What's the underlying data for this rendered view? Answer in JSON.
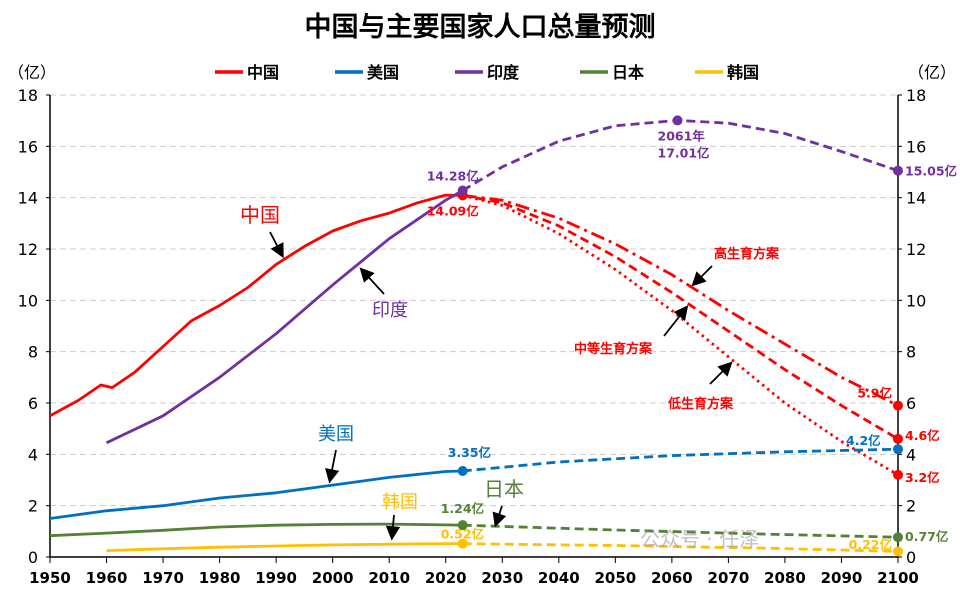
{
  "chart_data": {
    "type": "line",
    "title": "中国与主要国家人口总量预测",
    "ylabel_left": "（亿）",
    "ylabel_right": "（亿）",
    "xlim": [
      1950,
      2100
    ],
    "ylim": [
      0,
      18
    ],
    "x_ticks": [
      1950,
      1960,
      1970,
      1980,
      1990,
      2000,
      2010,
      2020,
      2030,
      2040,
      2050,
      2060,
      2070,
      2080,
      2090,
      2100
    ],
    "y_ticks": [
      0,
      2,
      4,
      6,
      8,
      10,
      12,
      14,
      16,
      18
    ],
    "grid": "horizontal dashed",
    "legend_position": "top",
    "series": [
      {
        "name": "中国",
        "color": "#ff0000",
        "actual": [
          [
            1950,
            5.5
          ],
          [
            1955,
            6.1
          ],
          [
            1959,
            6.7
          ],
          [
            1961,
            6.6
          ],
          [
            1965,
            7.2
          ],
          [
            1970,
            8.2
          ],
          [
            1975,
            9.2
          ],
          [
            1980,
            9.8
          ],
          [
            1985,
            10.5
          ],
          [
            1990,
            11.4
          ],
          [
            1995,
            12.1
          ],
          [
            2000,
            12.7
          ],
          [
            2005,
            13.1
          ],
          [
            2010,
            13.4
          ],
          [
            2015,
            13.8
          ],
          [
            2020,
            14.1
          ],
          [
            2023,
            14.09
          ]
        ],
        "projections": [
          {
            "name": "高生育方案",
            "style": "dashdot",
            "points": [
              [
                2023,
                14.09
              ],
              [
                2030,
                13.9
              ],
              [
                2040,
                13.2
              ],
              [
                2050,
                12.2
              ],
              [
                2060,
                11.0
              ],
              [
                2070,
                9.6
              ],
              [
                2080,
                8.3
              ],
              [
                2090,
                7.0
              ],
              [
                2100,
                5.9
              ]
            ]
          },
          {
            "name": "中等生育方案",
            "style": "dashed",
            "points": [
              [
                2023,
                14.09
              ],
              [
                2030,
                13.8
              ],
              [
                2040,
                12.9
              ],
              [
                2050,
                11.7
              ],
              [
                2060,
                10.3
              ],
              [
                2070,
                8.8
              ],
              [
                2080,
                7.3
              ],
              [
                2090,
                5.9
              ],
              [
                2100,
                4.6
              ]
            ]
          },
          {
            "name": "低生育方案",
            "style": "dotted",
            "points": [
              [
                2023,
                14.09
              ],
              [
                2030,
                13.7
              ],
              [
                2040,
                12.6
              ],
              [
                2050,
                11.2
              ],
              [
                2060,
                9.6
              ],
              [
                2070,
                7.8
              ],
              [
                2080,
                6.0
              ],
              [
                2090,
                4.5
              ],
              [
                2100,
                3.2
              ]
            ]
          }
        ]
      },
      {
        "name": "美国",
        "color": "#0070c0",
        "actual": [
          [
            1950,
            1.5
          ],
          [
            1960,
            1.8
          ],
          [
            1970,
            2.0
          ],
          [
            1980,
            2.3
          ],
          [
            1990,
            2.5
          ],
          [
            2000,
            2.8
          ],
          [
            2010,
            3.1
          ],
          [
            2020,
            3.33
          ],
          [
            2023,
            3.35
          ]
        ],
        "projections": [
          {
            "name": "",
            "style": "dashed",
            "points": [
              [
                2023,
                3.35
              ],
              [
                2040,
                3.7
              ],
              [
                2060,
                3.95
              ],
              [
                2080,
                4.1
              ],
              [
                2100,
                4.2
              ]
            ]
          }
        ]
      },
      {
        "name": "印度",
        "color": "#7030a0",
        "actual": [
          [
            1960,
            4.45
          ],
          [
            1970,
            5.5
          ],
          [
            1980,
            7.0
          ],
          [
            1990,
            8.7
          ],
          [
            2000,
            10.6
          ],
          [
            2010,
            12.4
          ],
          [
            2020,
            13.9
          ],
          [
            2023,
            14.28
          ]
        ],
        "projections": [
          {
            "name": "",
            "style": "dashed",
            "points": [
              [
                2023,
                14.28
              ],
              [
                2030,
                15.2
              ],
              [
                2040,
                16.2
              ],
              [
                2050,
                16.8
              ],
              [
                2061,
                17.01
              ],
              [
                2070,
                16.9
              ],
              [
                2080,
                16.5
              ],
              [
                2090,
                15.8
              ],
              [
                2100,
                15.05
              ]
            ]
          }
        ]
      },
      {
        "name": "日本",
        "color": "#548235",
        "actual": [
          [
            1950,
            0.83
          ],
          [
            1960,
            0.93
          ],
          [
            1970,
            1.04
          ],
          [
            1980,
            1.17
          ],
          [
            1990,
            1.24
          ],
          [
            2000,
            1.27
          ],
          [
            2010,
            1.28
          ],
          [
            2020,
            1.25
          ],
          [
            2023,
            1.24
          ]
        ],
        "projections": [
          {
            "name": "",
            "style": "dashed",
            "points": [
              [
                2023,
                1.24
              ],
              [
                2050,
                1.05
              ],
              [
                2075,
                0.9
              ],
              [
                2100,
                0.77
              ]
            ]
          }
        ]
      },
      {
        "name": "韩国",
        "color": "#ffc000",
        "actual": [
          [
            1960,
            0.25
          ],
          [
            1970,
            0.32
          ],
          [
            1980,
            0.38
          ],
          [
            1990,
            0.43
          ],
          [
            2000,
            0.47
          ],
          [
            2010,
            0.5
          ],
          [
            2020,
            0.52
          ],
          [
            2023,
            0.52
          ]
        ],
        "projections": [
          {
            "name": "",
            "style": "dashed",
            "points": [
              [
                2023,
                0.52
              ],
              [
                2050,
                0.45
              ],
              [
                2075,
                0.35
              ],
              [
                2100,
                0.22
              ]
            ]
          }
        ]
      }
    ],
    "data_labels": [
      {
        "text": "14.28亿",
        "x": 2023,
        "y": 14.28,
        "color": "#7030a0"
      },
      {
        "text": "14.09亿",
        "x": 2023,
        "y": 14.09,
        "color": "#ff0000"
      },
      {
        "text": "2061年",
        "x": 2061,
        "y": 17.01,
        "color": "#7030a0"
      },
      {
        "text": "17.01亿",
        "x": 2061,
        "y": 17.01,
        "color": "#7030a0"
      },
      {
        "text": "15.05亿",
        "x": 2100,
        "y": 15.05,
        "color": "#7030a0"
      },
      {
        "text": "3.35亿",
        "x": 2023,
        "y": 3.35,
        "color": "#0070c0"
      },
      {
        "text": "1.24亿",
        "x": 2023,
        "y": 1.24,
        "color": "#548235"
      },
      {
        "text": "0.52亿",
        "x": 2023,
        "y": 0.52,
        "color": "#ffc000"
      },
      {
        "text": "5.9亿",
        "x": 2100,
        "y": 5.9,
        "color": "#ff0000"
      },
      {
        "text": "4.6亿",
        "x": 2100,
        "y": 4.6,
        "color": "#ff0000"
      },
      {
        "text": "4.2亿",
        "x": 2100,
        "y": 4.2,
        "color": "#0070c0"
      },
      {
        "text": "3.2亿",
        "x": 2100,
        "y": 3.2,
        "color": "#ff0000"
      },
      {
        "text": "0.77亿",
        "x": 2100,
        "y": 0.77,
        "color": "#548235"
      },
      {
        "text": "0.22亿",
        "x": 2100,
        "y": 0.22,
        "color": "#ffc000"
      }
    ],
    "annotations": [
      "中国",
      "印度",
      "美国",
      "韩国",
      "日本",
      "高生育方案",
      "中等生育方案",
      "低生育方案"
    ]
  },
  "watermark": "公众号 · 任泽"
}
